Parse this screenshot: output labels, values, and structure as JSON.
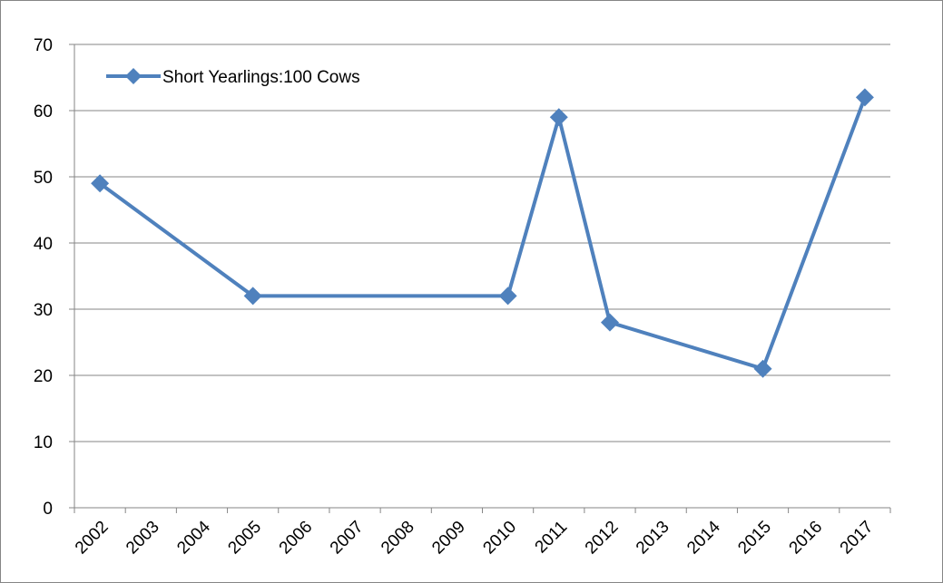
{
  "chart_data": {
    "type": "line",
    "title": "",
    "xlabel": "",
    "ylabel": "",
    "x": [
      "2002",
      "2003",
      "2004",
      "2005",
      "2006",
      "2007",
      "2008",
      "2009",
      "2010",
      "2011",
      "2012",
      "2013",
      "2014",
      "2015",
      "2016",
      "2017"
    ],
    "ylim": [
      0,
      70
    ],
    "yticks": [
      0,
      10,
      20,
      30,
      40,
      50,
      60,
      70
    ],
    "grid": true,
    "legend_position": "top-left",
    "series": [
      {
        "name": "Short Yearlings:100 Cows",
        "color": "#4f81bd",
        "marker": "diamond",
        "points": [
          {
            "x": "2002",
            "y": 49
          },
          {
            "x": "2005",
            "y": 32
          },
          {
            "x": "2010",
            "y": 32
          },
          {
            "x": "2011",
            "y": 59
          },
          {
            "x": "2012",
            "y": 28
          },
          {
            "x": "2015",
            "y": 21
          },
          {
            "x": "2017",
            "y": 62
          }
        ]
      }
    ]
  }
}
